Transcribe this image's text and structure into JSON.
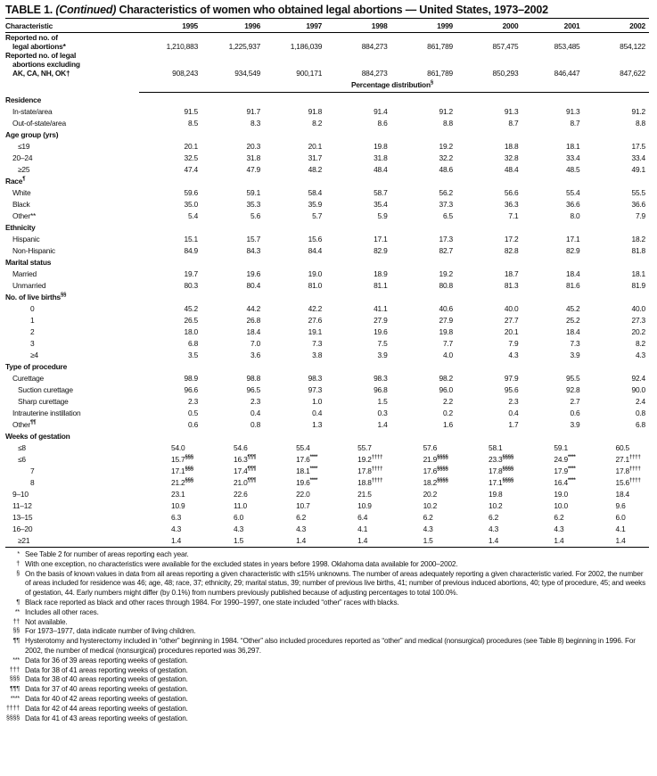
{
  "title": {
    "prefix": "TABLE 1. ",
    "italic": "(Continued)",
    "rest": " Characteristics of women who obtained legal abortions — United States, 1973–2002"
  },
  "columns": [
    "Characteristic",
    "1995",
    "1996",
    "1997",
    "1998",
    "1999",
    "2000",
    "2001",
    "2002"
  ],
  "top_rows": [
    {
      "label": "Reported no. of",
      "label2": "legal abortions*",
      "values": [
        "1,210,883",
        "1,225,937",
        "1,186,039",
        "884,273",
        "861,789",
        "857,475",
        "853,485",
        "854,122"
      ]
    },
    {
      "label": "Reported no. of legal",
      "label2": "abortions excluding",
      "label3": "AK, CA, NH, OK†",
      "values": [
        "908,243",
        "934,549",
        "900,171",
        "884,273",
        "861,789",
        "850,293",
        "846,447",
        "847,622"
      ]
    }
  ],
  "pct_header": {
    "text": "Percentage distribution",
    "sup": "§"
  },
  "rows": [
    {
      "label": "Residence",
      "section": true
    },
    {
      "label": "In-state/area",
      "indent": 1,
      "values": [
        "91.5",
        "91.7",
        "91.8",
        "91.4",
        "91.2",
        "91.3",
        "91.3",
        "91.2"
      ]
    },
    {
      "label": "Out-of-state/area",
      "indent": 1,
      "values": [
        "8.5",
        "8.3",
        "8.2",
        "8.6",
        "8.8",
        "8.7",
        "8.7",
        "8.8"
      ]
    },
    {
      "label": "Age group (yrs)",
      "section": true
    },
    {
      "label": "≤19",
      "indent": 2,
      "values": [
        "20.1",
        "20.3",
        "20.1",
        "19.8",
        "19.2",
        "18.8",
        "18.1",
        "17.5"
      ]
    },
    {
      "label": "20–24",
      "indent": 1,
      "values": [
        "32.5",
        "31.8",
        "31.7",
        "31.8",
        "32.2",
        "32.8",
        "33.4",
        "33.4"
      ]
    },
    {
      "label": "≥25",
      "indent": 2,
      "values": [
        "47.4",
        "47.9",
        "48.2",
        "48.4",
        "48.6",
        "48.4",
        "48.5",
        "49.1"
      ]
    },
    {
      "label": "Race",
      "sup": "¶",
      "section": true
    },
    {
      "label": "White",
      "indent": 1,
      "values": [
        "59.6",
        "59.1",
        "58.4",
        "58.7",
        "56.2",
        "56.6",
        "55.4",
        "55.5"
      ]
    },
    {
      "label": "Black",
      "indent": 1,
      "values": [
        "35.0",
        "35.3",
        "35.9",
        "35.4",
        "37.3",
        "36.3",
        "36.6",
        "36.6"
      ]
    },
    {
      "label": "Other**",
      "indent": 1,
      "values": [
        "5.4",
        "5.6",
        "5.7",
        "5.9",
        "6.5",
        "7.1",
        "8.0",
        "7.9"
      ]
    },
    {
      "label": "Ethnicity",
      "section": true
    },
    {
      "label": "Hispanic",
      "indent": 1,
      "values": [
        "15.1",
        "15.7",
        "15.6",
        "17.1",
        "17.3",
        "17.2",
        "17.1",
        "18.2"
      ]
    },
    {
      "label": "Non-Hispanic",
      "indent": 1,
      "values": [
        "84.9",
        "84.3",
        "84.4",
        "82.9",
        "82.7",
        "82.8",
        "82.9",
        "81.8"
      ]
    },
    {
      "label": "Marital status",
      "section": true
    },
    {
      "label": "Married",
      "indent": 1,
      "values": [
        "19.7",
        "19.6",
        "19.0",
        "18.9",
        "19.2",
        "18.7",
        "18.4",
        "18.1"
      ]
    },
    {
      "label": "Unmarried",
      "indent": 1,
      "values": [
        "80.3",
        "80.4",
        "81.0",
        "81.1",
        "80.8",
        "81.3",
        "81.6",
        "81.9"
      ]
    },
    {
      "label": "No. of live births",
      "sup": "§§",
      "section": true
    },
    {
      "label": "0",
      "indent": 3,
      "values": [
        "45.2",
        "44.2",
        "42.2",
        "41.1",
        "40.6",
        "40.0",
        "45.2",
        "40.0"
      ]
    },
    {
      "label": "1",
      "indent": 3,
      "values": [
        "26.5",
        "26.8",
        "27.6",
        "27.9",
        "27.9",
        "27.7",
        "25.2",
        "27.3"
      ]
    },
    {
      "label": "2",
      "indent": 3,
      "values": [
        "18.0",
        "18.4",
        "19.1",
        "19.6",
        "19.8",
        "20.1",
        "18.4",
        "20.2"
      ]
    },
    {
      "label": "3",
      "indent": 3,
      "values": [
        "6.8",
        "7.0",
        "7.3",
        "7.5",
        "7.7",
        "7.9",
        "7.3",
        "8.2"
      ]
    },
    {
      "label": "≥4",
      "indent": 3,
      "values": [
        "3.5",
        "3.6",
        "3.8",
        "3.9",
        "4.0",
        "4.3",
        "3.9",
        "4.3"
      ]
    },
    {
      "label": "Type of procedure",
      "section": true
    },
    {
      "label": "Curettage",
      "indent": 1,
      "values": [
        "98.9",
        "98.8",
        "98.3",
        "98.3",
        "98.2",
        "97.9",
        "95.5",
        "92.4"
      ]
    },
    {
      "label": "Suction curettage",
      "indent": 2,
      "values": [
        "96.6",
        "96.5",
        "97.3",
        "96.8",
        "96.0",
        "95.6",
        "92.8",
        "90.0"
      ]
    },
    {
      "label": "Sharp curettage",
      "indent": 2,
      "values": [
        "2.3",
        "2.3",
        "1.0",
        "1.5",
        "2.2",
        "2.3",
        "2.7",
        "2.4"
      ]
    },
    {
      "label": "Intrauterine instillation",
      "indent": 1,
      "values": [
        "0.5",
        "0.4",
        "0.4",
        "0.3",
        "0.2",
        "0.4",
        "0.6",
        "0.8"
      ]
    },
    {
      "label": "Other",
      "sup": "¶¶",
      "indent": 1,
      "values": [
        "0.6",
        "0.8",
        "1.3",
        "1.4",
        "1.6",
        "1.7",
        "3.9",
        "6.8"
      ]
    },
    {
      "label": "Weeks of gestation",
      "section": true
    },
    {
      "label": "≤8",
      "indent": 2,
      "left": true,
      "values": [
        "54.0",
        "54.6",
        "55.4",
        "55.7",
        "57.6",
        "58.1",
        "59.1",
        "60.5"
      ]
    },
    {
      "label": "≤6",
      "indent": 2,
      "left": true,
      "values": [
        "15.7",
        "16.3",
        "17.6",
        "19.2",
        "21.9",
        "23.3",
        "24.9",
        "27.1"
      ],
      "sups": [
        "§§§",
        "¶¶¶",
        "****",
        "††††",
        "§§§§",
        "§§§§",
        "****",
        "††††"
      ]
    },
    {
      "label": "7",
      "indent": 3,
      "left": true,
      "values": [
        "17.1",
        "17.4",
        "18.1",
        "17.8",
        "17.6",
        "17.8",
        "17.9",
        "17.8"
      ],
      "sups": [
        "§§§",
        "¶¶¶",
        "****",
        "††††",
        "§§§§",
        "§§§§",
        "****",
        "††††"
      ]
    },
    {
      "label": "8",
      "indent": 3,
      "left": true,
      "values": [
        "21.2",
        "21.0",
        "19.6",
        "18.8",
        "18.2",
        "17.1",
        "16.4",
        "15.6"
      ],
      "sups": [
        "§§§",
        "¶¶¶",
        "****",
        "††††",
        "§§§§",
        "§§§§",
        "****",
        "††††"
      ]
    },
    {
      "label": "9–10",
      "indent": 1,
      "left": true,
      "values": [
        "23.1",
        "22.6",
        "22.0",
        "21.5",
        "20.2",
        "19.8",
        "19.0",
        "18.4"
      ]
    },
    {
      "label": "11–12",
      "indent": 1,
      "left": true,
      "values": [
        "10.9",
        "11.0",
        "10.7",
        "10.9",
        "10.2",
        "10.2",
        "10.0",
        "9.6"
      ]
    },
    {
      "label": "13–15",
      "indent": 1,
      "left": true,
      "values": [
        "6.3",
        "6.0",
        "6.2",
        "6.4",
        "6.2",
        "6.2",
        "6.2",
        "6.0"
      ]
    },
    {
      "label": "16–20",
      "indent": 1,
      "left": true,
      "values": [
        "4.3",
        "4.3",
        "4.3",
        "4.1",
        "4.3",
        "4.3",
        "4.3",
        "4.1"
      ]
    },
    {
      "label": "≥21",
      "indent": 2,
      "left": true,
      "values": [
        "1.4",
        "1.5",
        "1.4",
        "1.4",
        "1.5",
        "1.4",
        "1.4",
        "1.4"
      ]
    }
  ],
  "footnotes": [
    {
      "mark": "*",
      "text": "See Table 2 for number of areas reporting each year."
    },
    {
      "mark": "†",
      "text": "With one exception, no characteristics were available for the excluded states in years before 1998. Oklahoma data available for 2000–2002."
    },
    {
      "mark": "§",
      "text": "On the basis of known values in data from all areas reporting a given characteristic with ≤15% unknowns. The number of areas adequately reporting a given characteristic varied. For 2002, the number of areas included for residence was 46; age, 48; race, 37; ethnicity, 29; marital status, 39; number of previous live births, 41; number of previous induced abortions, 40; type of procedure, 45; and weeks of gestation, 44. Early numbers might differ (by 0.1%) from numbers previously published because of adjusting percentages to total 100.0%."
    },
    {
      "mark": "¶",
      "text": "Black race reported as black and other races through 1984. For 1990–1997, one state included “other” races with blacks."
    },
    {
      "mark": "**",
      "text": "Includes all other races."
    },
    {
      "mark": "††",
      "text": "Not available."
    },
    {
      "mark": "§§",
      "text": "For 1973–1977, data indicate number of living children."
    },
    {
      "mark": "¶¶",
      "text": "Hysterotomy and hysterectomy included in “other” beginning in 1984. “Other” also included procedures reported as “other” and medical (nonsurgical) procedures (see Table 8) beginning in 1996. For 2002, the number of medical (nonsurgical) procedures reported was 36,297."
    },
    {
      "mark": "***",
      "text": "Data for 36 of 39 areas reporting weeks of gestation."
    },
    {
      "mark": "†††",
      "text": "Data for 38 of 41 areas reporting weeks of gestation."
    },
    {
      "mark": "§§§",
      "text": "Data for 38 of 40 areas reporting weeks of gestation."
    },
    {
      "mark": "¶¶¶",
      "text": "Data for 37 of 40 areas reporting weeks of gestation."
    },
    {
      "mark": "****",
      "text": "Data for 40 of 42 areas reporting weeks of gestation."
    },
    {
      "mark": "††††",
      "text": "Data for 42 of 44 areas reporting weeks of gestation."
    },
    {
      "mark": "§§§§",
      "text": "Data for 41 of 43 areas reporting weeks of gestation."
    }
  ]
}
